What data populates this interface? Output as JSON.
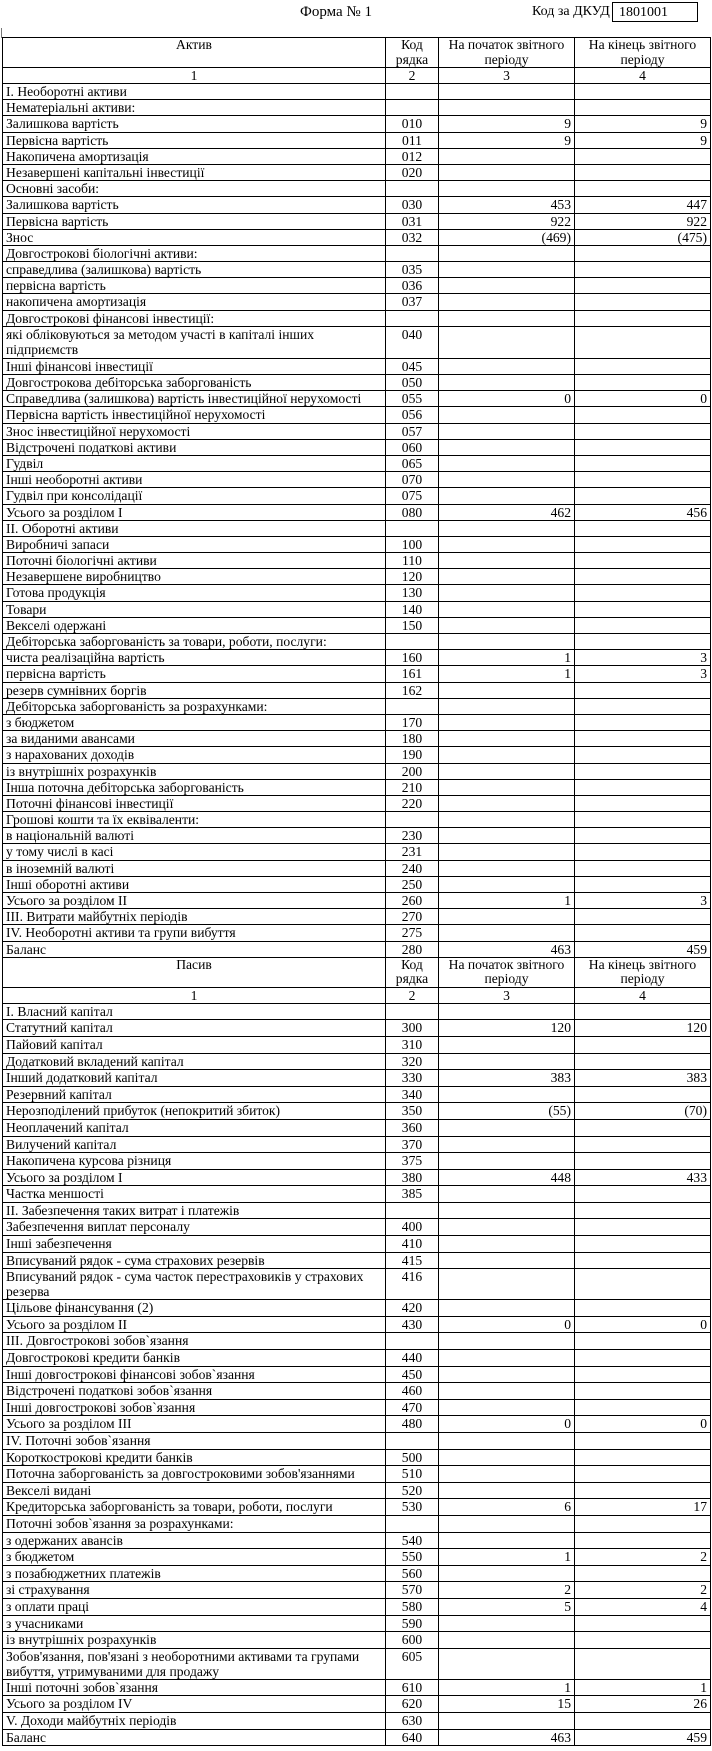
{
  "header": {
    "form_title": "Форма № 1",
    "dkud_label": "Код за ДКУД",
    "dkud_code": "1801001"
  },
  "assets": {
    "columns": [
      "Актив",
      "Код рядка",
      "На початок звітного періоду",
      "На кінець звітного періоду"
    ],
    "column_numbers": [
      "1",
      "2",
      "3",
      "4"
    ],
    "rows": [
      [
        "І. Необоротні активи",
        "",
        "",
        ""
      ],
      [
        "Нематеріальні активи:",
        "",
        "",
        ""
      ],
      [
        "Залишкова вартість",
        "010",
        "9",
        "9"
      ],
      [
        "Первісна вартість",
        "011",
        "9",
        "9"
      ],
      [
        "Накопичена амортизація",
        "012",
        "",
        ""
      ],
      [
        "Незавершені капітальні інвестиції",
        "020",
        "",
        ""
      ],
      [
        "Основні засоби:",
        "",
        "",
        ""
      ],
      [
        "Залишкова вартість",
        "030",
        "453",
        "447"
      ],
      [
        "Первісна вартість",
        "031",
        "922",
        "922"
      ],
      [
        "Знос",
        "032",
        "(469)",
        "(475)"
      ],
      [
        "Довгострокові біологічні активи:",
        "",
        "",
        ""
      ],
      [
        "справедлива (залишкова) вартість",
        "035",
        "",
        ""
      ],
      [
        "первісна вартість",
        "036",
        "",
        ""
      ],
      [
        "накопичена амортизація",
        "037",
        "",
        ""
      ],
      [
        "Довгострокові фінансові інвестиції:",
        "",
        "",
        ""
      ],
      [
        "які обліковуються за методом участі в капіталі інших підприємств",
        "040",
        "",
        ""
      ],
      [
        "Інші фінансові інвестиції",
        "045",
        "",
        ""
      ],
      [
        "Довгострокова дебіторська заборгованість",
        "050",
        "",
        ""
      ],
      [
        "Справедлива (залишкова) вартість інвестиційної нерухомості",
        "055",
        "0",
        "0"
      ],
      [
        "Первісна вартість інвестиційної  нерухомості",
        "056",
        "",
        ""
      ],
      [
        "Знос інвестиційної  нерухомості",
        "057",
        "",
        ""
      ],
      [
        "Відстрочені податкові активи",
        "060",
        "",
        ""
      ],
      [
        "Гудвіл",
        "065",
        "",
        ""
      ],
      [
        "Інші необоротні активи",
        "070",
        "",
        ""
      ],
      [
        "Гудвіл при консолідації",
        "075",
        "",
        ""
      ],
      [
        "Усього за розділом І",
        "080",
        "462",
        "456"
      ],
      [
        "ІІ. Оборотні активи",
        "",
        "",
        ""
      ],
      [
        "Виробничі запаси",
        "100",
        "",
        ""
      ],
      [
        "Поточні біологічні  активи",
        "110",
        "",
        ""
      ],
      [
        "Незавершене виробництво",
        "120",
        "",
        ""
      ],
      [
        "Готова продукція",
        "130",
        "",
        ""
      ],
      [
        "Товари",
        "140",
        "",
        ""
      ],
      [
        "Векселі одержані",
        "150",
        "",
        ""
      ],
      [
        "Дебіторська заборгованість за товари, роботи, послуги:",
        "",
        "",
        ""
      ],
      [
        "чиста реалізаційна вартість",
        "160",
        "1",
        "3"
      ],
      [
        "первісна вартість",
        "161",
        "1",
        "3"
      ],
      [
        "резерв сумнівних  боргів",
        "162",
        "",
        ""
      ],
      [
        "Дебіторська заборгованість за розрахунками:",
        "",
        "",
        ""
      ],
      [
        "з бюджетом",
        "170",
        "",
        ""
      ],
      [
        "за виданими авансами",
        "180",
        "",
        ""
      ],
      [
        "з нарахованих доходів",
        "190",
        "",
        ""
      ],
      [
        "із внутрішніх розрахунків",
        "200",
        "",
        ""
      ],
      [
        "Інша поточна дебіторська заборгованість",
        "210",
        "",
        ""
      ],
      [
        "Поточні фінансові інвестиції",
        "220",
        "",
        ""
      ],
      [
        "Грошові кошти та їх еквіваленти:",
        "",
        "",
        ""
      ],
      [
        "в національній валюті",
        "230",
        "",
        ""
      ],
      [
        "у тому числі в касі",
        "231",
        "",
        ""
      ],
      [
        "в іноземній  валюті",
        "240",
        "",
        ""
      ],
      [
        "Інші оборотні активи",
        "250",
        "",
        ""
      ],
      [
        "Усього за розділом ІІ",
        "260",
        "1",
        "3"
      ],
      [
        "ІІІ. Витрати майбутніх періодів",
        "270",
        "",
        ""
      ],
      [
        "IV. Необоротні активи та групи вибуття",
        "275",
        "",
        ""
      ],
      [
        "Баланс",
        "280",
        "463",
        "459"
      ]
    ]
  },
  "liabilities": {
    "columns": [
      "Пасив",
      "Код рядка",
      "На початок звітного періоду",
      "На кінець звітного періоду"
    ],
    "column_numbers": [
      "1",
      "2",
      "3",
      "4"
    ],
    "rows": [
      [
        "І. Власний капітал",
        "",
        "",
        ""
      ],
      [
        "Статутний капітал",
        "300",
        "120",
        "120"
      ],
      [
        "Пайовий капітал",
        "310",
        "",
        ""
      ],
      [
        "Додатковий вкладений капітал",
        "320",
        "",
        ""
      ],
      [
        "Інший додатковий капітал",
        "330",
        "383",
        "383"
      ],
      [
        "Резервний капітал",
        "340",
        "",
        ""
      ],
      [
        "Нерозподілений прибуток (непокритий збиток)",
        "350",
        "(55)",
        "(70)"
      ],
      [
        "Неоплачений капітал",
        "360",
        "",
        ""
      ],
      [
        "Вилучений капітал",
        "370",
        "",
        ""
      ],
      [
        "Накопичена курсова різниця",
        "375",
        "",
        ""
      ],
      [
        "Усього за розділом І",
        "380",
        "448",
        "433"
      ],
      [
        "Частка меншості",
        "385",
        "",
        ""
      ],
      [
        "ІІ. Забезпечення таких витрат і платежів",
        "",
        "",
        ""
      ],
      [
        "Забезпечення виплат персоналу",
        "400",
        "",
        ""
      ],
      [
        "Інші забезпечення",
        "410",
        "",
        ""
      ],
      [
        "Вписуваний рядок - сума страхових резервів",
        "415",
        "",
        ""
      ],
      [
        "Вписуваний рядок - сума часток перестраховиків у страхових резерва",
        "416",
        "",
        ""
      ],
      [
        "Цільове фінансування (2)",
        "420",
        "",
        ""
      ],
      [
        "Усього за розділом ІІ",
        "430",
        "0",
        "0"
      ],
      [
        "ІІІ. Довгострокові зобов`язання",
        "",
        "",
        ""
      ],
      [
        "Довгострокові кредити банків",
        "440",
        "",
        ""
      ],
      [
        "Інші довгострокові фінансові зобов`язання",
        "450",
        "",
        ""
      ],
      [
        "Відстрочені податкові зобов`язання",
        "460",
        "",
        ""
      ],
      [
        "Інші довгострокові зобов`язання",
        "470",
        "",
        ""
      ],
      [
        "Усього за розділом ІІІ",
        "480",
        "0",
        "0"
      ],
      [
        "IV. Поточні зобов`язання",
        "",
        "",
        ""
      ],
      [
        "Короткострокові кредити банків",
        "500",
        "",
        ""
      ],
      [
        "Поточна заборгованість за довгостроковими зобов'язаннями",
        "510",
        "",
        ""
      ],
      [
        "Векселі видані",
        "520",
        "",
        ""
      ],
      [
        "Кредиторська заборгованість за товари, роботи, послуги",
        "530",
        "6",
        "17"
      ],
      [
        "Поточні зобов`язання за розрахунками:",
        "",
        "",
        ""
      ],
      [
        "з одержаних авансів",
        "540",
        "",
        ""
      ],
      [
        "з бюджетом",
        "550",
        "1",
        "2"
      ],
      [
        "з позабюджетних платежів",
        "560",
        "",
        ""
      ],
      [
        "зі страхування",
        "570",
        "2",
        "2"
      ],
      [
        "з оплати праці",
        "580",
        "5",
        "4"
      ],
      [
        "з учасниками",
        "590",
        "",
        ""
      ],
      [
        "із внутрішніх  розрахунків",
        "600",
        "",
        ""
      ],
      [
        "Зобов'язання, пов'язані з необоротними активами та групами вибуття, утримуваними для продажу",
        "605",
        "",
        ""
      ],
      [
        "Інші поточні зобов`язання",
        "610",
        "1",
        "1"
      ],
      [
        "Усього за розділом IV",
        "620",
        "15",
        "26"
      ],
      [
        "V. Доходи майбутніх періодів",
        "630",
        "",
        ""
      ],
      [
        "Баланс",
        "640",
        "463",
        "459"
      ]
    ]
  }
}
